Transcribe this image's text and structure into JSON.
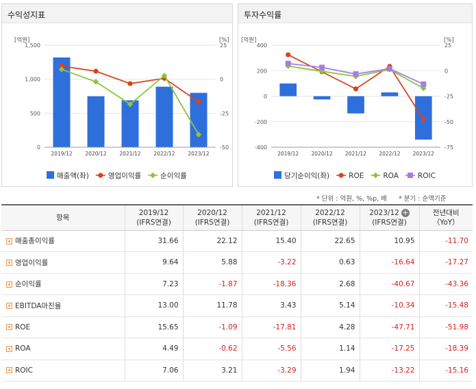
{
  "chart_data": [
    {
      "type": "bar",
      "title": "수익성지표",
      "y_left_unit": "[억원]",
      "y_right_unit": "[%]",
      "categories": [
        "2019/12",
        "2020/12",
        "2021/12",
        "2022/12",
        "2023/12"
      ],
      "y_left_ticks": [
        "1,500",
        "1,000",
        "500",
        "0"
      ],
      "y_right_ticks": [
        "25",
        "0",
        "-25",
        "-50"
      ],
      "ylim_left": [
        0,
        1500
      ],
      "ylim_right": [
        -50,
        25
      ],
      "bar_series": {
        "name": "매출액(좌)",
        "color": "#2f6fdc",
        "values": [
          1320,
          750,
          690,
          890,
          800
        ]
      },
      "line_series": [
        {
          "name": "영업이익률",
          "color": "#d9441c",
          "values": [
            9.64,
            5.88,
            -3.22,
            0.63,
            -16.64
          ]
        },
        {
          "name": "순이익률",
          "color": "#8bc53f",
          "values": [
            7.23,
            -1.87,
            -18.36,
            2.68,
            -40.67
          ]
        }
      ]
    },
    {
      "type": "bar",
      "title": "투자수익률",
      "y_left_unit": "[억원]",
      "y_right_unit": "[%]",
      "categories": [
        "2019/12",
        "2020/12",
        "2021/12",
        "2022/12",
        "2023/12"
      ],
      "y_left_ticks": [
        "400",
        "200",
        "0",
        "-200",
        "-400"
      ],
      "y_right_ticks": [
        "25",
        "0",
        "-25",
        "-50",
        "-75"
      ],
      "ylim_left": [
        -400,
        400
      ],
      "ylim_right": [
        -75,
        25
      ],
      "bar_series": {
        "name": "당기순이익(좌)",
        "color": "#2f6fdc",
        "values": [
          100,
          -25,
          -135,
          30,
          -340
        ]
      },
      "line_series": [
        {
          "name": "ROE",
          "color": "#d9441c",
          "values": [
            15.65,
            -1.09,
            -17.81,
            4.28,
            -47.71
          ]
        },
        {
          "name": "ROA",
          "color": "#8bc53f",
          "values": [
            4.49,
            -0.62,
            -5.56,
            1.14,
            -17.25
          ]
        },
        {
          "name": "ROIC",
          "color": "#a57ee0",
          "values": [
            7.06,
            3.21,
            -3.29,
            1.94,
            -13.22
          ]
        }
      ]
    }
  ],
  "notes": {
    "unit": "* 단위 : 억원, %, %p, 배",
    "period": "* 분기 : 순액기준"
  },
  "table": {
    "header_item": "항목",
    "columns": [
      {
        "year": "2019/12",
        "sub": "(IFRS연결)"
      },
      {
        "year": "2020/12",
        "sub": "(IFRS연결)"
      },
      {
        "year": "2021/12",
        "sub": "(IFRS연결)"
      },
      {
        "year": "2022/12",
        "sub": "(IFRS연결)"
      },
      {
        "year": "2023/12",
        "sub": "(IFRS연결)"
      },
      {
        "year": "전년대비",
        "sub": "（YoY）"
      }
    ],
    "rows": [
      {
        "label": "매출총이익률",
        "values": [
          "31.66",
          "22.12",
          "15.40",
          "22.65",
          "10.95",
          "-11.70"
        ]
      },
      {
        "label": "영업이익률",
        "values": [
          "9.64",
          "5.88",
          "-3.22",
          "0.63",
          "-16.64",
          "-17.27"
        ]
      },
      {
        "label": "순이익률",
        "values": [
          "7.23",
          "-1.87",
          "-18.36",
          "2.68",
          "-40.67",
          "-43.36"
        ]
      },
      {
        "label": "EBITDA마진율",
        "values": [
          "13.00",
          "11.78",
          "3.43",
          "5.14",
          "-10.34",
          "-15.48"
        ]
      },
      {
        "label": "ROE",
        "values": [
          "15.65",
          "-1.09",
          "-17.81",
          "4.28",
          "-47.71",
          "-51.98"
        ]
      },
      {
        "label": "ROA",
        "values": [
          "4.49",
          "-0.62",
          "-5.56",
          "1.14",
          "-17.25",
          "-18.39"
        ]
      },
      {
        "label": "ROIC",
        "values": [
          "7.06",
          "3.21",
          "-3.29",
          "1.94",
          "-13.22",
          "-15.16"
        ]
      }
    ]
  }
}
